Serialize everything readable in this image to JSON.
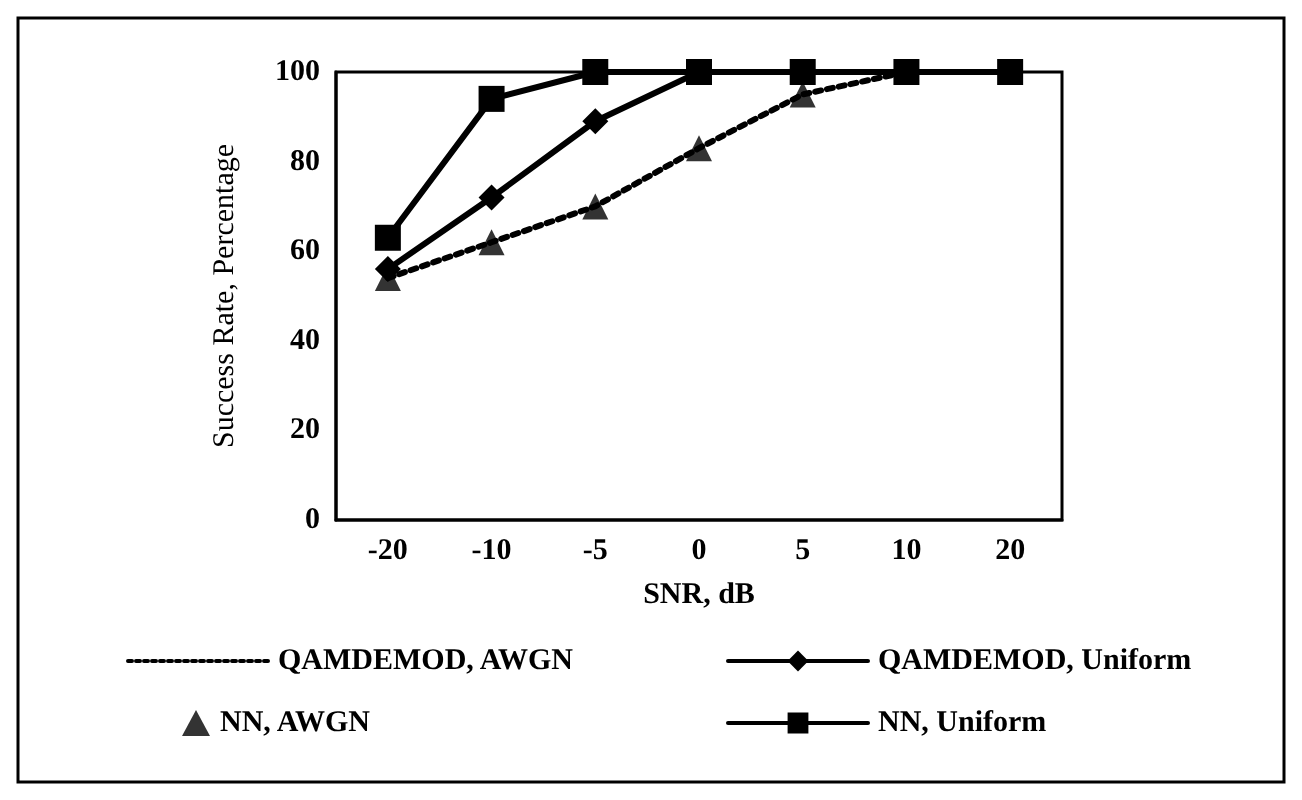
{
  "chart_data": {
    "type": "line",
    "xlabel": "SNR, dB",
    "ylabel": "Success Rate, Percentage",
    "categories": [
      "-20",
      "-10",
      "-5",
      "0",
      "5",
      "10",
      "20"
    ],
    "ylim": [
      0,
      100
    ],
    "yticks": [
      0,
      20,
      40,
      60,
      80,
      100
    ],
    "grid": false,
    "legend": "bottom",
    "series": [
      {
        "name": "QAMDEMOD, AWGN",
        "color": "#000000",
        "marker": "none",
        "line_style": "dotted",
        "values": [
          54,
          62,
          70,
          83,
          95,
          100,
          100
        ]
      },
      {
        "name": "QAMDEMOD, Uniform",
        "color": "#000000",
        "marker": "diamond",
        "line_style": "solid",
        "values": [
          56,
          72,
          89,
          100,
          100,
          100,
          100
        ]
      },
      {
        "name": "NN, AWGN",
        "type": "scatter",
        "color": "#000000",
        "marker": "triangle",
        "values": [
          54,
          62,
          70,
          83,
          95,
          null,
          null
        ]
      },
      {
        "name": "NN, Uniform",
        "color": "#000000",
        "marker": "square",
        "line_style": "solid",
        "values": [
          63,
          94,
          100,
          100,
          100,
          100,
          100
        ]
      }
    ]
  }
}
